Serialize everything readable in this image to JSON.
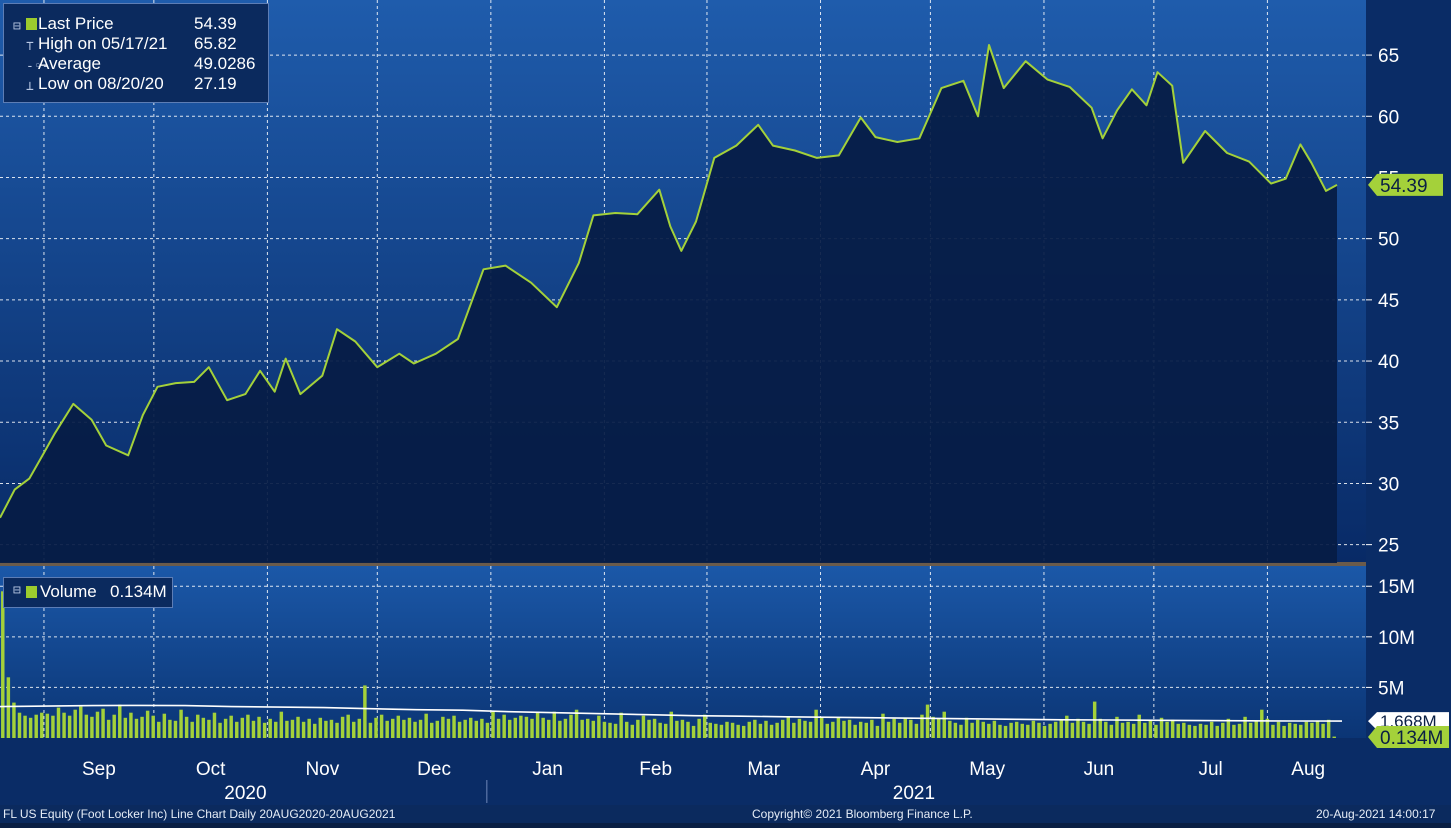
{
  "chart_data": {
    "type": "line",
    "price_panel": {
      "legend": [
        {
          "label": "Last Price",
          "value": "54.39"
        },
        {
          "label": "High on 05/17/21",
          "value": "65.82"
        },
        {
          "label": "Average",
          "value": "49.0286"
        },
        {
          "label": "Low on 08/20/20",
          "value": "27.19"
        }
      ],
      "y_ticks": [
        25,
        30,
        35,
        40,
        45,
        50,
        55,
        60,
        65
      ],
      "ylim": [
        23.5,
        69.5
      ],
      "last_price_tag": "54.39",
      "series": {
        "x": [
          "2020-08-20",
          "2020-08-24",
          "2020-08-28",
          "2020-09-01",
          "2020-09-04",
          "2020-09-09",
          "2020-09-14",
          "2020-09-18",
          "2020-09-24",
          "2020-09-28",
          "2020-10-02",
          "2020-10-07",
          "2020-10-12",
          "2020-10-16",
          "2020-10-21",
          "2020-10-26",
          "2020-10-30",
          "2020-11-03",
          "2020-11-06",
          "2020-11-10",
          "2020-11-16",
          "2020-11-20",
          "2020-11-25",
          "2020-12-01",
          "2020-12-07",
          "2020-12-11",
          "2020-12-17",
          "2020-12-23",
          "2020-12-30",
          "2021-01-05",
          "2021-01-12",
          "2021-01-19",
          "2021-01-25",
          "2021-01-29",
          "2021-02-04",
          "2021-02-10",
          "2021-02-16",
          "2021-02-19",
          "2021-02-22",
          "2021-02-26",
          "2021-03-03",
          "2021-03-09",
          "2021-03-15",
          "2021-03-19",
          "2021-03-25",
          "2021-03-31",
          "2021-04-06",
          "2021-04-12",
          "2021-04-16",
          "2021-04-22",
          "2021-04-28",
          "2021-05-04",
          "2021-05-10",
          "2021-05-14",
          "2021-05-17",
          "2021-05-21",
          "2021-05-27",
          "2021-06-02",
          "2021-06-08",
          "2021-06-14",
          "2021-06-17",
          "2021-06-21",
          "2021-06-25",
          "2021-06-29",
          "2021-07-02",
          "2021-07-06",
          "2021-07-09",
          "2021-07-15",
          "2021-07-21",
          "2021-07-27",
          "2021-08-02",
          "2021-08-06",
          "2021-08-10",
          "2021-08-13",
          "2021-08-17",
          "2021-08-20"
        ],
        "y": [
          27.19,
          29.5,
          30.4,
          32.5,
          34.1,
          36.5,
          35.2,
          33.1,
          32.3,
          35.6,
          37.9,
          38.2,
          38.3,
          39.5,
          36.8,
          37.3,
          39.2,
          37.5,
          40.2,
          37.3,
          38.8,
          42.6,
          41.6,
          39.5,
          40.6,
          39.8,
          40.6,
          41.8,
          47.5,
          47.8,
          46.4,
          44.4,
          48.0,
          51.9,
          52.1,
          52.0,
          54.0,
          51.0,
          49.0,
          51.4,
          56.6,
          57.6,
          59.3,
          57.6,
          57.2,
          56.6,
          56.8,
          59.9,
          58.3,
          57.9,
          58.2,
          62.3,
          62.9,
          60.0,
          65.82,
          62.3,
          64.5,
          63.0,
          62.4,
          60.7,
          58.2,
          60.5,
          62.2,
          60.9,
          63.6,
          62.5,
          56.2,
          58.8,
          57.0,
          56.3,
          54.5,
          54.9,
          57.7,
          56.2,
          53.9,
          54.39
        ]
      }
    },
    "volume_panel": {
      "legend": {
        "label": "Volume",
        "value": "0.134M"
      },
      "y_ticks": [
        "5M",
        "10M",
        "15M"
      ],
      "ylim": [
        0,
        17
      ],
      "avg_tag": "1.668M",
      "last_tag": "0.134M",
      "volume_series": [
        14.5,
        6.0,
        3.5,
        2.5,
        2.2,
        2.0,
        2.3,
        2.5,
        2.4,
        2.2,
        3.0,
        2.5,
        2.2,
        2.8,
        3.1,
        2.3,
        2.1,
        2.6,
        2.9,
        1.8,
        2.3,
        3.3,
        2.0,
        2.5,
        1.9,
        2.1,
        2.7,
        2.2,
        1.6,
        2.4,
        1.8,
        1.7,
        2.8,
        2.1,
        1.6,
        2.3,
        2.0,
        1.8,
        2.5,
        1.5,
        1.9,
        2.2,
        1.6,
        2.0,
        2.3,
        1.7,
        2.1,
        1.5,
        1.9,
        1.6,
        2.6,
        1.7,
        1.8,
        2.1,
        1.6,
        1.9,
        1.4,
        2.0,
        1.7,
        1.8,
        1.5,
        2.1,
        2.3,
        1.6,
        1.9,
        5.2,
        1.5,
        2.0,
        2.3,
        1.7,
        1.9,
        2.2,
        1.8,
        2.0,
        1.6,
        1.8,
        2.4,
        1.5,
        1.7,
        2.1,
        1.9,
        2.2,
        1.6,
        1.8,
        2.0,
        1.7,
        1.9,
        1.5,
        2.6,
        1.9,
        2.3,
        1.8,
        2.0,
        2.2,
        2.1,
        1.9,
        2.5,
        2.0,
        1.8,
        2.6,
        1.7,
        1.9,
        2.3,
        2.8,
        1.8,
        1.9,
        1.7,
        2.2,
        1.6,
        1.5,
        1.4,
        2.5,
        1.6,
        1.3,
        1.8,
        2.2,
        1.8,
        1.9,
        1.5,
        1.4,
        2.6,
        1.7,
        1.8,
        1.6,
        1.2,
        1.9,
        2.3,
        1.5,
        1.4,
        1.3,
        1.6,
        1.5,
        1.3,
        1.2,
        1.6,
        1.8,
        1.4,
        1.7,
        1.3,
        1.5,
        1.8,
        2.1,
        1.5,
        1.9,
        1.7,
        1.6,
        2.8,
        2.0,
        1.4,
        1.6,
        2.0,
        1.7,
        1.8,
        1.3,
        1.6,
        1.5,
        1.8,
        1.2,
        2.4,
        1.6,
        1.9,
        1.5,
        2.0,
        1.8,
        1.4,
        2.3,
        3.3,
        2.1,
        1.9,
        2.6,
        1.7,
        1.5,
        1.3,
        2.0,
        1.5,
        1.8,
        1.6,
        1.4,
        1.7,
        1.3,
        1.2,
        1.5,
        1.6,
        1.4,
        1.3,
        1.7,
        1.5,
        1.2,
        1.4,
        1.6,
        1.8,
        2.2,
        1.5,
        1.9,
        1.6,
        1.4,
        3.6,
        1.9,
        1.6,
        1.3,
        2.1,
        1.5,
        1.6,
        1.4,
        2.3,
        1.5,
        1.7,
        1.3,
        2.0,
        1.6,
        1.8,
        1.4,
        1.5,
        1.3,
        1.2,
        1.4,
        1.3,
        1.6,
        1.2,
        1.5,
        1.9,
        1.3,
        1.4,
        2.1,
        1.5,
        1.7,
        2.8,
        1.9,
        1.3,
        1.6,
        1.2,
        1.5,
        1.4,
        1.3,
        1.6,
        1.5,
        1.7,
        1.4,
        1.8,
        0.134
      ],
      "avg_series": [
        3.1,
        3.15,
        3.2,
        3.22,
        3.2,
        3.1,
        3.05,
        3.0,
        2.9,
        2.8,
        2.75,
        2.6,
        2.5,
        2.4,
        2.3,
        2.2,
        2.15,
        2.1,
        2.05,
        2.0,
        1.95,
        1.9,
        1.85,
        1.8,
        1.78,
        1.75,
        1.72,
        1.7,
        1.68,
        1.668
      ]
    },
    "x_months": [
      "Sep",
      "Oct",
      "Nov",
      "Dec",
      "Jan",
      "Feb",
      "Mar",
      "Apr",
      "May",
      "Jun",
      "Jul",
      "Aug"
    ],
    "x_years": [
      "2020",
      "2021"
    ]
  },
  "footer": {
    "left": "FL US Equity (Foot Locker Inc) Line Chart  Daily 20AUG2020-20AUG2021",
    "center": "Copyright© 2021 Bloomberg Finance L.P.",
    "right": "20-Aug-2021 14:00:17"
  },
  "colors": {
    "background_top": "#1e5aa8",
    "background_bottom": "#082a66",
    "area_fill": "#061c45",
    "price_line": "#a4d13a",
    "volume_bar": "#a4d13a",
    "avg_line": "#ffffff",
    "grid": "#ffffff"
  }
}
